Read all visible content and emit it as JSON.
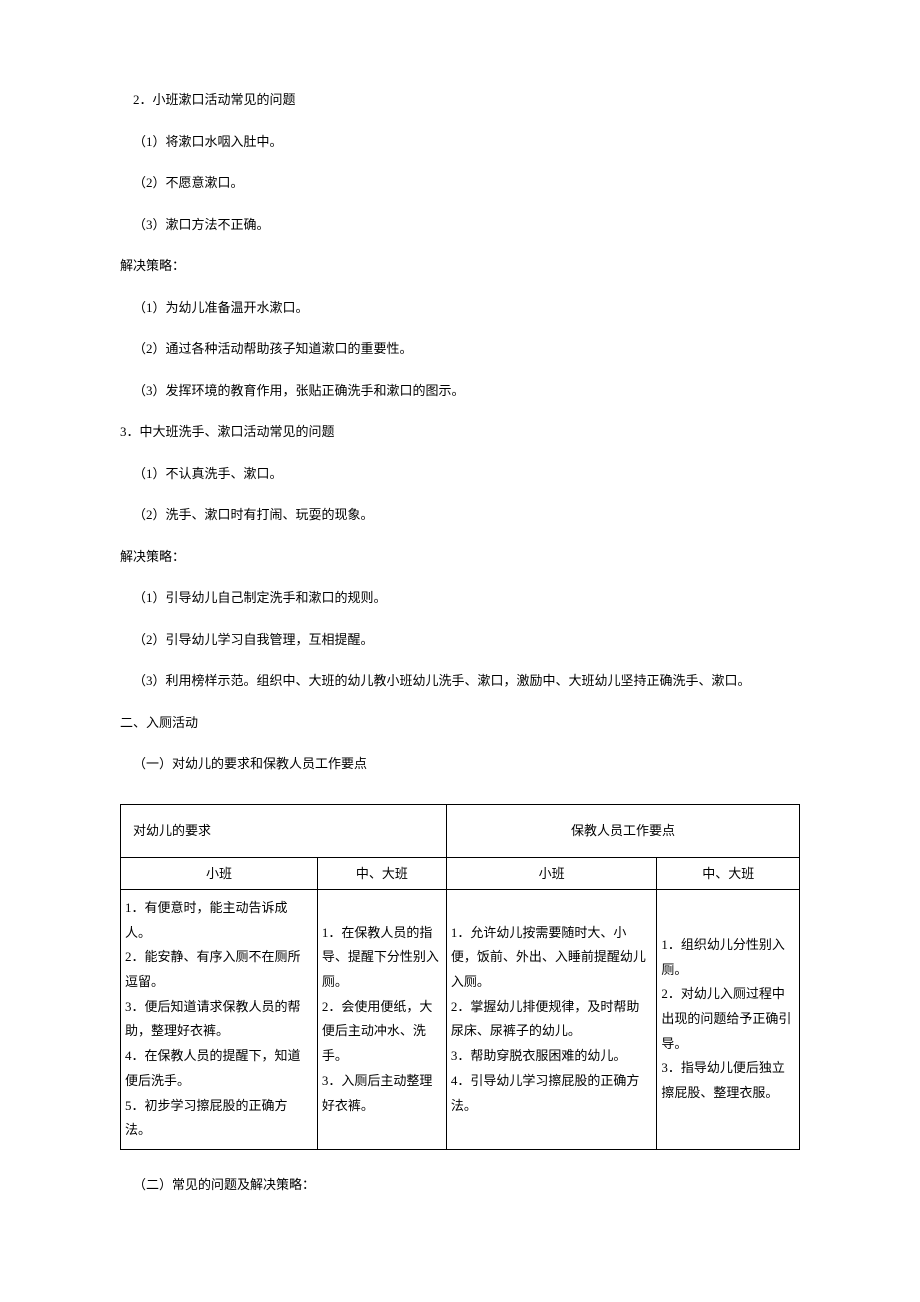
{
  "p1": "2．小班漱口活动常见的问题",
  "p2": "（1）将漱口水咽入肚中。",
  "p3": "（2）不愿意漱口。",
  "p4": "（3）漱口方法不正确。",
  "p5": "解决策略：",
  "p6": "（1）为幼儿准备温开水漱口。",
  "p7": "（2）通过各种活动帮助孩子知道漱口的重要性。",
  "p8": "（3）发挥环境的教育作用，张贴正确洗手和漱口的图示。",
  "p9": "3．中大班洗手、漱口活动常见的问题",
  "p10": "（1）不认真洗手、漱口。",
  "p11": "（2）洗手、漱口时有打闹、玩耍的现象。",
  "p12": "解决策略：",
  "p13": "（1）引导幼儿自己制定洗手和漱口的规则。",
  "p14": "（2）引导幼儿学习自我管理，互相提醒。",
  "p15": "（3）利用榜样示范。组织中、大班的幼儿教小班幼儿洗手、漱口，激励中、大班幼儿坚持正确洗手、漱口。",
  "p16": "二、入厕活动",
  "p17": "（一）对幼儿的要求和保教人员工作要点",
  "p18": "（二）常见的问题及解决策略：",
  "table": {
    "header_left": "对幼儿的要求",
    "header_right": "保教人员工作要点",
    "sub": {
      "c1": "小班",
      "c2": "中、大班",
      "c3": "小班",
      "c4": "中、大班"
    },
    "row": {
      "c1": "1．有便意时，能主动告诉成人。\n2．能安静、有序入厕不在厕所逗留。\n3．便后知道请求保教人员的帮助，整理好衣裤。\n4．在保教人员的提醒下，知道便后洗手。\n5．初步学习擦屁股的正确方法。",
      "c2": "1．在保教人员的指导、提醒下分性别入厕。\n2．会使用便纸，大便后主动冲水、洗手。\n3．入厕后主动整理好衣裤。",
      "c3": "1．允许幼儿按需要随时大、小便，饭前、外出、入睡前提醒幼儿入厕。\n2．掌握幼儿排便规律，及时帮助尿床、尿裤子的幼儿。\n3．帮助穿脱衣服困难的幼儿。\n4．引导幼儿学习擦屁股的正确方法。",
      "c4": "1．组织幼儿分性别入厕。\n2．对幼儿入厕过程中出现的问题给予正确引导。\n3．指导幼儿便后独立擦屁股、整理衣服。"
    }
  }
}
